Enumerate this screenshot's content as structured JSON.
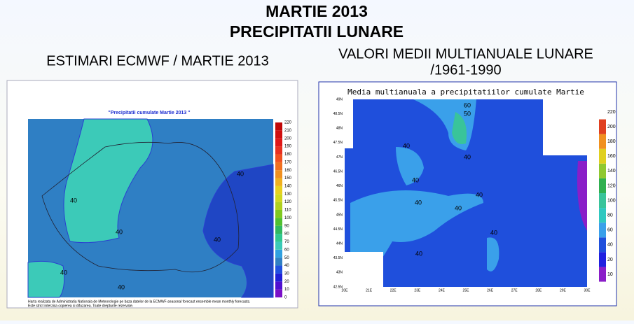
{
  "header": {
    "title": "MARTIE 2013",
    "subtitle": "PRECIPITATII LUNARE"
  },
  "left": {
    "heading": "ESTIMARI ECMWF / MARTIE 2013",
    "map": {
      "title": "\"Precipitatii cumulate Martie 2013 \"",
      "colorbar": [
        "0",
        "10",
        "20",
        "30",
        "40",
        "50",
        "60",
        "70",
        "80",
        "90",
        "100",
        "110",
        "120",
        "130",
        "140",
        "150",
        "160",
        "170",
        "180",
        "190",
        "200",
        "210",
        "220"
      ],
      "contour_labels": [
        "40",
        "40",
        "40",
        "40",
        "40",
        "40"
      ],
      "footnote": [
        "Harta realizata de Administratia Nationala de Meteorologie pe baza datelor de la ECMWF-seasonal forecast ensemble mean monthly forecasts.",
        "Este strict interzisa copierea si difuzarea. Toate drepturile rezervate."
      ]
    }
  },
  "right": {
    "heading": [
      "VALORI MEDII MULTIANUALE LUNARE",
      "/1961-1990"
    ],
    "map": {
      "title": "Media multianuala a precipitatiilor cumulate Martie",
      "lat_labels": [
        "49N",
        "48.5N",
        "48N",
        "47.5N",
        "47N",
        "46.5N",
        "46N",
        "45.5N",
        "45N",
        "44.5N",
        "44N",
        "43.5N",
        "43N",
        "42.5N"
      ],
      "lon_labels": [
        "20E",
        "21E",
        "22E",
        "23E",
        "24E",
        "25E",
        "26E",
        "27E",
        "28E",
        "29E",
        "30E"
      ],
      "colorbar": [
        "10",
        "20",
        "40",
        "60",
        "80",
        "100",
        "120",
        "140",
        "160",
        "180",
        "200",
        "220"
      ],
      "contour_labels": [
        "60",
        "50",
        "40",
        "40",
        "40",
        "40",
        "40",
        "40",
        "40",
        "40"
      ]
    }
  }
}
